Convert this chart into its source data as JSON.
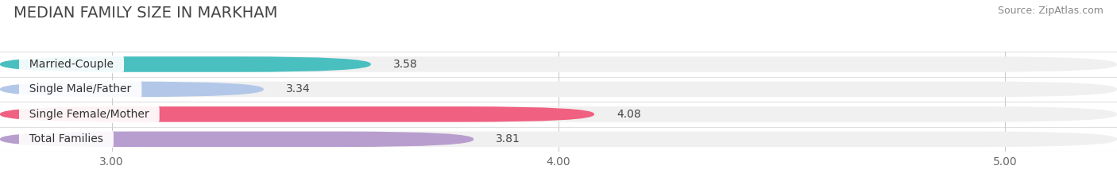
{
  "title": "MEDIAN FAMILY SIZE IN MARKHAM",
  "source": "Source: ZipAtlas.com",
  "categories": [
    "Married-Couple",
    "Single Male/Father",
    "Single Female/Mother",
    "Total Families"
  ],
  "values": [
    3.58,
    3.34,
    4.08,
    3.81
  ],
  "bar_colors": [
    "#49bfbf",
    "#b3c8e8",
    "#f06080",
    "#b89ece"
  ],
  "xlim_left": 2.75,
  "xlim_right": 5.25,
  "xstart": 2.75,
  "xticks": [
    3.0,
    4.0,
    5.0
  ],
  "xtick_labels": [
    "3.00",
    "4.00",
    "5.00"
  ],
  "background_color": "#ffffff",
  "bar_bg_color": "#f0f0f0",
  "sep_line_color": "#e0e0e0",
  "title_fontsize": 14,
  "label_fontsize": 10,
  "value_fontsize": 10,
  "source_fontsize": 9,
  "bar_height": 0.62
}
